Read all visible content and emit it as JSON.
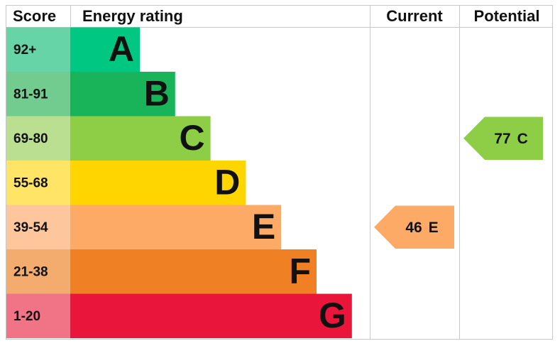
{
  "header": {
    "score": "Score",
    "energy_rating": "Energy rating",
    "current": "Current",
    "potential": "Potential"
  },
  "bands": [
    {
      "score": "92+",
      "letter": "A",
      "color": "#00c781",
      "score_color": "#66d4a6"
    },
    {
      "score": "81-91",
      "letter": "B",
      "color": "#19b459",
      "score_color": "#73cc8f"
    },
    {
      "score": "69-80",
      "letter": "C",
      "color": "#8dce46",
      "score_color": "#badf91"
    },
    {
      "score": "55-68",
      "letter": "D",
      "color": "#ffd500",
      "score_color": "#ffe466"
    },
    {
      "score": "39-54",
      "letter": "E",
      "color": "#fcaa65",
      "score_color": "#fdc69c"
    },
    {
      "score": "21-38",
      "letter": "F",
      "color": "#ef8023",
      "score_color": "#f4ab6e"
    },
    {
      "score": "1-20",
      "letter": "G",
      "color": "#e9153b",
      "score_color": "#f07386"
    }
  ],
  "current": {
    "value": 46,
    "rating": "E"
  },
  "potential": {
    "value": 77,
    "rating": "C"
  }
}
